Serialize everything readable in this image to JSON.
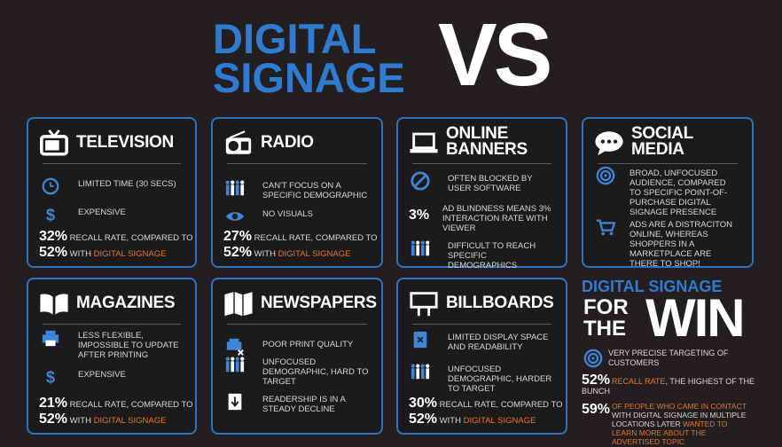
{
  "header": {
    "title_line1": "DIGITAL",
    "title_line2": "SIGNAGE",
    "title_vs": "VS"
  },
  "cards": [
    {
      "title_lines": [
        "TELEVISION"
      ],
      "items": [
        {
          "text": "LIMITED TIME (30 SECS)"
        },
        {
          "text": "EXPENSIVE"
        }
      ],
      "stat": {
        "value1": "32%",
        "text1": "RECALL RATE, COMPARED TO",
        "value2": "52%",
        "text2": "WITH",
        "highlight": "DIGITAL SIGNAGE"
      }
    },
    {
      "title_lines": [
        "RADIO"
      ],
      "items": [
        {
          "text": "CAN'T FOCUS ON A SPECIFIC DEMOGRAPHIC"
        },
        {
          "text": "NO VISUALS"
        }
      ],
      "stat": {
        "value1": "27%",
        "text1": "RECALL RATE, COMPARED TO",
        "value2": "52%",
        "text2": "WITH",
        "highlight": "DIGITAL SIGNAGE"
      }
    },
    {
      "title_lines": [
        "ONLINE",
        "BANNERS"
      ],
      "items": [
        {
          "text": "OFTEN BLOCKED BY USER SOFTWARE"
        },
        {
          "stat": "3%",
          "text": "AD BLINDNESS MEANS 3% INTERACTION RATE WITH VIEWER"
        },
        {
          "text": "DIFFICULT TO REACH SPECIFIC DEMOGRAPHICS"
        }
      ]
    },
    {
      "title_lines": [
        "SOCIAL",
        "MEDIA"
      ],
      "items": [
        {
          "text": "BROAD, UNFOCUSED AUDIENCE, COMPARED TO SPECIFIC POINT-OF-PURCHASE DIGITAL SIGNAGE PRESENCE"
        },
        {
          "text": "ADS ARE A DISTRACITON ONLINE, WHEREAS SHOPPERS IN A MARKETPLACE ARE THERE TO SHOP!"
        }
      ]
    },
    {
      "title_lines": [
        "MAGAZINES"
      ],
      "items": [
        {
          "text": "LESS FLEXIBLE, IMPOSSIBLE TO UPDATE AFTER PRINTING"
        },
        {
          "text": "EXPENSIVE"
        }
      ],
      "stat": {
        "value1": "21%",
        "text1": "RECALL RATE, COMPARED TO",
        "value2": "52%",
        "text2": "WITH",
        "highlight": "DIGITAL SIGNAGE"
      }
    },
    {
      "title_lines": [
        "NEWSPAPERS"
      ],
      "items": [
        {
          "text": "POOR PRINT QUALITY"
        },
        {
          "text": "UNFOCUSED DEMOGRAPHIC, HARD TO TARGET"
        },
        {
          "text": "READERSHIP IS IN A STEADY DECLINE"
        }
      ]
    },
    {
      "title_lines": [
        "BILLBOARDS"
      ],
      "items": [
        {
          "text": "LIMITED DISPLAY SPACE AND READABILITY"
        },
        {
          "text": "UNFOCUSED DEMOGRAPHIC, HARDER TO TARGET"
        }
      ],
      "stat": {
        "value1": "30%",
        "text1": "RECALL RATE, COMPARED TO",
        "value2": "52%",
        "text2": "WITH",
        "highlight": "DIGITAL SIGNAGE"
      }
    }
  ],
  "win": {
    "title": "DIGITAL SIGNAGE",
    "for": "FOR",
    "the": "THE",
    "win": "WIN",
    "item1": "VERY PRECISE TARGETING OF CUSTOMERS",
    "item2": {
      "value": "52%",
      "highlight": "RECALL RATE",
      "text": ", THE HIGHEST OF THE BUNCH"
    },
    "item3": {
      "value": "59%",
      "highlight1": "OF PEOPLE WHO CAME IN CONTACT",
      "text": "WITH DIGITAL SIGNAGE IN MULTIPLE LOCATIONS LATER",
      "highlight2": "WANTED TO LEARN MORE ABOUT THE ADVERTISED TOPIC"
    }
  }
}
